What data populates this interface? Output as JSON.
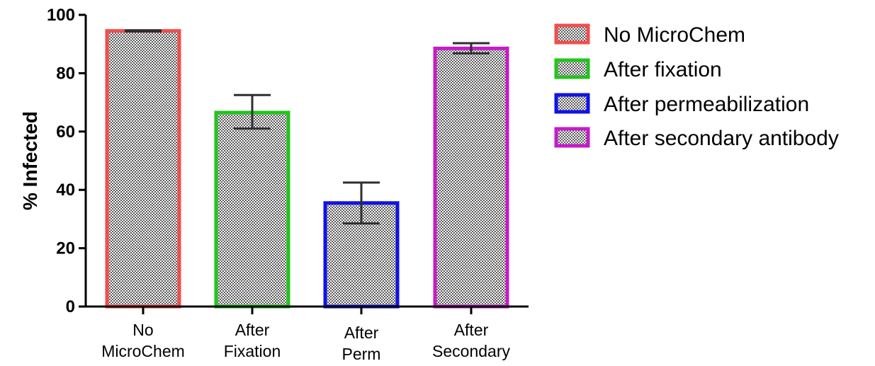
{
  "chart_data": {
    "type": "bar",
    "categories": [
      "No MicroChem",
      "After Fixation",
      "After Perm",
      "After Secondary"
    ],
    "category_lines": [
      [
        "No",
        "MicroChem"
      ],
      [
        "After",
        "Fixation"
      ],
      [
        "After",
        "Perm"
      ],
      [
        "After",
        "Secondary"
      ]
    ],
    "values": [
      94.5,
      66.5,
      35.5,
      88.5
    ],
    "error_low": [
      94.3,
      61.0,
      28.5,
      86.8
    ],
    "error_high": [
      94.7,
      72.5,
      42.5,
      90.3
    ],
    "colors": [
      "#f04e4e",
      "#22c41d",
      "#1212e8",
      "#c51cc8"
    ],
    "fill_pattern": "checkerboard-gray",
    "legend": [
      "No MicroChem",
      "After fixation",
      "After permeabilization",
      "After secondary antibody"
    ],
    "legend_position": "right",
    "xlabel": "",
    "ylabel": "% Infected",
    "ylim": [
      0,
      100
    ],
    "yticks": [
      0,
      20,
      40,
      60,
      80,
      100
    ],
    "grid": false
  }
}
